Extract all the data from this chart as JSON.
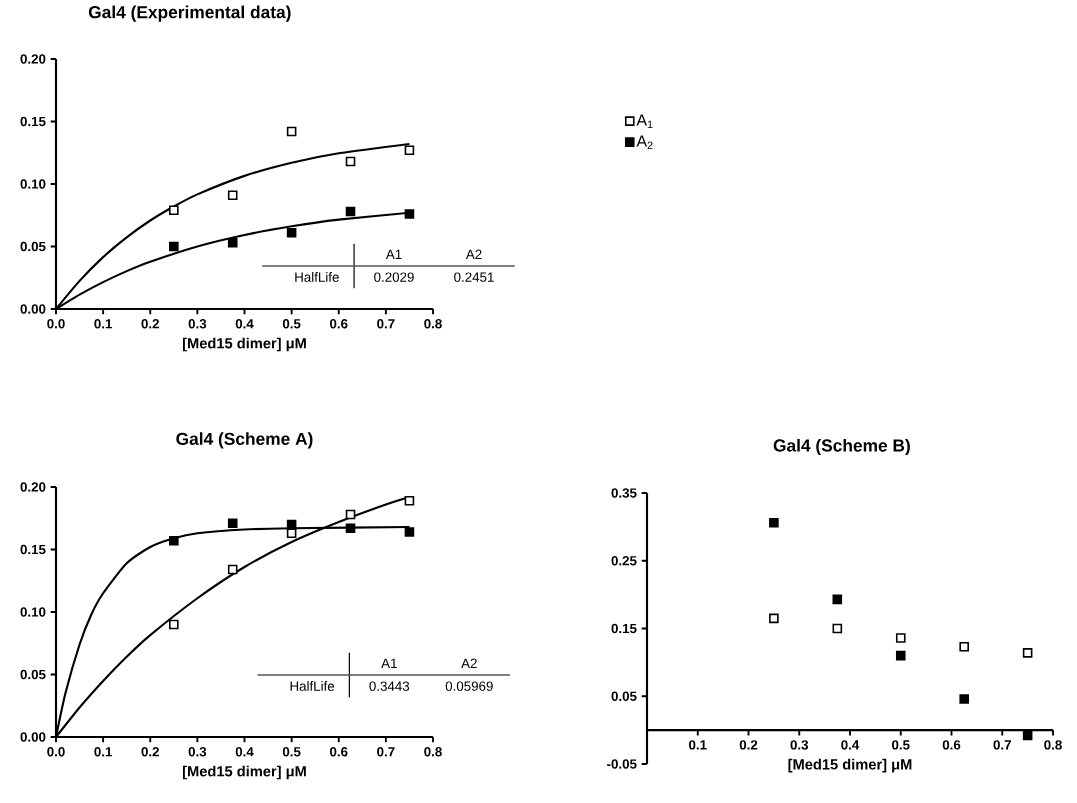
{
  "chart_data": [
    {
      "type": "scatter",
      "title": "Gal4 (Experimental data)",
      "xlabel": "[Med15 dimer] μM",
      "x": [
        0.25,
        0.375,
        0.5,
        0.625,
        0.75
      ],
      "series": [
        {
          "name": "A$_{1}$",
          "color": "#000000",
          "values": [
            0.079,
            0.091,
            0.142,
            0.118,
            0.127
          ]
        },
        {
          "name": "A$_{2}$",
          "color": "#000000",
          "values": [
            0.05,
            0.053,
            0.061,
            0.078,
            0.076
          ]
        },
        {
          "type": "line",
          "color": "#000000",
          "marker": "none",
          "x": [
            0,
            0.05,
            0.1,
            0.15,
            0.2,
            0.25,
            0.3,
            0.4,
            0.5,
            0.6,
            0.75
          ],
          "values": [
            0,
            0.0225,
            0.0415,
            0.0573,
            0.0708,
            0.082,
            0.0917,
            0.1065,
            0.117,
            0.1246,
            0.132
          ]
        },
        {
          "type": "line",
          "color": "#000000",
          "marker": "none",
          "x": [
            0,
            0.05,
            0.1,
            0.15,
            0.2,
            0.3,
            0.4,
            0.5,
            0.6,
            0.75
          ],
          "values": [
            0,
            0.0115,
            0.0215,
            0.0303,
            0.0378,
            0.05,
            0.0592,
            0.0662,
            0.0715,
            0.077
          ]
        }
      ],
      "xlim": [
        0,
        0.8
      ],
      "ylim": [
        0,
        0.2
      ],
      "xticks": [
        {
          "value": 0,
          "label": "0.0"
        },
        0.1,
        0.2,
        0.3,
        0.4,
        0.5,
        0.6,
        0.7,
        0.8
      ],
      "yticks": [
        {
          "value": 0,
          "label": "0.00"
        },
        0.05,
        {
          "value": 0.1,
          "label": "0.10"
        },
        0.15,
        {
          "value": 0.2,
          "label": "0.20"
        }
      ],
      "annotations": [
        "A1",
        "A2",
        "HalfLife",
        "0.2029",
        "0.2451"
      ],
      "marker": "square",
      "line_style": "solid",
      "legend": "right"
    },
    {
      "type": "scatter",
      "title": "Gal4 (Scheme A)",
      "xlabel": "[Med15 dimer] μM",
      "x": [
        0.25,
        0.375,
        0.5,
        0.625,
        0.75
      ],
      "series": [
        {
          "color": "#000000",
          "values": [
            0.09,
            0.134,
            0.163,
            0.178,
            0.189
          ]
        },
        {
          "color": "#000000",
          "values": [
            0.157,
            0.171,
            0.17,
            0.167,
            0.164
          ]
        },
        {
          "type": "line",
          "color": "#000000",
          "marker": "none",
          "x": [
            0,
            0.05,
            0.1,
            0.15,
            0.2,
            0.3,
            0.4,
            0.5,
            0.6,
            0.7,
            0.75
          ],
          "values": [
            0,
            0.0236,
            0.0448,
            0.0642,
            0.0815,
            0.111,
            0.136,
            0.156,
            0.172,
            0.186,
            0.192
          ]
        },
        {
          "type": "line",
          "color": "#000000",
          "marker": "none",
          "x": [
            0,
            0.02,
            0.05,
            0.075,
            0.1,
            0.15,
            0.2,
            0.25,
            0.3,
            0.4,
            0.5,
            0.75
          ],
          "values": [
            0,
            0.035,
            0.074,
            0.098,
            0.115,
            0.139,
            0.152,
            0.159,
            0.163,
            0.166,
            0.167,
            0.168
          ]
        }
      ],
      "xlim": [
        0,
        0.8
      ],
      "ylim": [
        0,
        0.2
      ],
      "xticks": [
        {
          "value": 0,
          "label": "0.0"
        },
        0.1,
        0.2,
        0.3,
        0.4,
        0.5,
        0.6,
        0.7,
        0.8
      ],
      "yticks": [
        {
          "value": 0,
          "label": "0.00"
        },
        0.05,
        {
          "value": 0.1,
          "label": "0.10"
        },
        0.15,
        {
          "value": 0.2,
          "label": "0.20"
        }
      ],
      "annotations": [
        "A1",
        "A2",
        "HalfLife",
        "0.3443",
        "0.05969"
      ],
      "marker": "square",
      "line_style": "solid"
    },
    {
      "type": "scatter",
      "title": "Gal4 (Scheme B)",
      "xlabel": "[Med15 dimer] μM",
      "x": [
        0.25,
        0.375,
        0.5,
        0.625,
        0.75
      ],
      "series": [
        {
          "color": "#000000",
          "values": [
            0.165,
            0.15,
            0.136,
            0.123,
            0.114
          ]
        },
        {
          "color": "#000000",
          "values": [
            0.306,
            0.193,
            0.11,
            0.046,
            -0.008
          ]
        }
      ],
      "xlim": [
        0,
        0.8
      ],
      "ylim": [
        -0.05,
        0.35
      ],
      "xticks": [
        0.1,
        0.2,
        0.3,
        0.4,
        0.5,
        0.6,
        0.7,
        0.8
      ],
      "yticks": [
        -0.05,
        0.05,
        0.15,
        0.25,
        0.35
      ],
      "marker": "square"
    }
  ]
}
